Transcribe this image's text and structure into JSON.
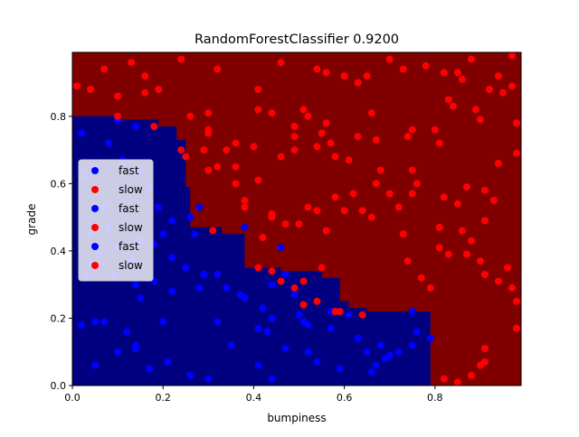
{
  "chart_data": {
    "type": "scatter",
    "title": "RandomForestClassifier 0.9200",
    "xlabel": "bumpiness",
    "ylabel": "grade",
    "xlim": [
      0.0,
      0.99
    ],
    "ylim": [
      0.0,
      0.99
    ],
    "xticks": [
      "0.0",
      "0.2",
      "0.4",
      "0.6",
      "0.8"
    ],
    "xtick_values": [
      0.0,
      0.2,
      0.4,
      0.6,
      0.8
    ],
    "yticks": [
      "0.0",
      "0.2",
      "0.4",
      "0.6",
      "0.8"
    ],
    "ytick_values": [
      0.0,
      0.2,
      0.4,
      0.6,
      0.8
    ],
    "grid": false,
    "legend_position": "upper-left",
    "legend": [
      {
        "label": "fast",
        "color": "#0000ff"
      },
      {
        "label": "slow",
        "color": "#ff0000"
      },
      {
        "label": "fast",
        "color": "#0000ff"
      },
      {
        "label": "slow",
        "color": "#ff0000"
      },
      {
        "label": "fast",
        "color": "#0000ff"
      },
      {
        "label": "slow",
        "color": "#ff0000"
      }
    ],
    "decision_regions": {
      "background_color": "#800000",
      "fast_region_color": "#000080",
      "fast_region_polygon": [
        [
          0.0,
          0.8
        ],
        [
          0.1,
          0.8
        ],
        [
          0.1,
          0.79
        ],
        [
          0.19,
          0.79
        ],
        [
          0.19,
          0.77
        ],
        [
          0.23,
          0.77
        ],
        [
          0.23,
          0.73
        ],
        [
          0.25,
          0.73
        ],
        [
          0.25,
          0.59
        ],
        [
          0.26,
          0.59
        ],
        [
          0.26,
          0.47
        ],
        [
          0.33,
          0.47
        ],
        [
          0.33,
          0.45
        ],
        [
          0.38,
          0.45
        ],
        [
          0.38,
          0.35
        ],
        [
          0.46,
          0.35
        ],
        [
          0.46,
          0.34
        ],
        [
          0.55,
          0.34
        ],
        [
          0.55,
          0.32
        ],
        [
          0.59,
          0.32
        ],
        [
          0.59,
          0.25
        ],
        [
          0.61,
          0.25
        ],
        [
          0.61,
          0.23
        ],
        [
          0.65,
          0.23
        ],
        [
          0.65,
          0.22
        ],
        [
          0.79,
          0.22
        ],
        [
          0.79,
          0.0
        ],
        [
          0.0,
          0.0
        ]
      ]
    },
    "series": [
      {
        "name": "fast",
        "color": "#0000ff",
        "points": [
          [
            0.02,
            0.75
          ],
          [
            0.03,
            0.62
          ],
          [
            0.05,
            0.65
          ],
          [
            0.07,
            0.53
          ],
          [
            0.08,
            0.72
          ],
          [
            0.1,
            0.79
          ],
          [
            0.11,
            0.67
          ],
          [
            0.14,
            0.77
          ],
          [
            0.15,
            0.64
          ],
          [
            0.17,
            0.59
          ],
          [
            0.19,
            0.53
          ],
          [
            0.08,
            0.47
          ],
          [
            0.04,
            0.45
          ],
          [
            0.1,
            0.41
          ],
          [
            0.15,
            0.43
          ],
          [
            0.2,
            0.45
          ],
          [
            0.22,
            0.49
          ],
          [
            0.26,
            0.5
          ],
          [
            0.28,
            0.53
          ],
          [
            0.27,
            0.45
          ],
          [
            0.22,
            0.38
          ],
          [
            0.18,
            0.42
          ],
          [
            0.13,
            0.37
          ],
          [
            0.09,
            0.33
          ],
          [
            0.03,
            0.32
          ],
          [
            0.04,
            0.36
          ],
          [
            0.14,
            0.3
          ],
          [
            0.18,
            0.31
          ],
          [
            0.15,
            0.26
          ],
          [
            0.22,
            0.28
          ],
          [
            0.25,
            0.35
          ],
          [
            0.28,
            0.29
          ],
          [
            0.29,
            0.33
          ],
          [
            0.32,
            0.33
          ],
          [
            0.34,
            0.29
          ],
          [
            0.37,
            0.27
          ],
          [
            0.38,
            0.47
          ],
          [
            0.38,
            0.26
          ],
          [
            0.42,
            0.23
          ],
          [
            0.44,
            0.3
          ],
          [
            0.46,
            0.41
          ],
          [
            0.47,
            0.33
          ],
          [
            0.49,
            0.27
          ],
          [
            0.44,
            0.2
          ],
          [
            0.41,
            0.17
          ],
          [
            0.43,
            0.16
          ],
          [
            0.47,
            0.11
          ],
          [
            0.5,
            0.21
          ],
          [
            0.51,
            0.19
          ],
          [
            0.52,
            0.18
          ],
          [
            0.57,
            0.22
          ],
          [
            0.61,
            0.21
          ],
          [
            0.57,
            0.17
          ],
          [
            0.63,
            0.14
          ],
          [
            0.65,
            0.1
          ],
          [
            0.68,
            0.12
          ],
          [
            0.69,
            0.08
          ],
          [
            0.7,
            0.09
          ],
          [
            0.72,
            0.1
          ],
          [
            0.75,
            0.12
          ],
          [
            0.76,
            0.16
          ],
          [
            0.79,
            0.14
          ],
          [
            0.75,
            0.22
          ],
          [
            0.67,
            0.06
          ],
          [
            0.66,
            0.04
          ],
          [
            0.59,
            0.05
          ],
          [
            0.54,
            0.07
          ],
          [
            0.52,
            0.1
          ],
          [
            0.44,
            0.02
          ],
          [
            0.41,
            0.06
          ],
          [
            0.35,
            0.12
          ],
          [
            0.32,
            0.19
          ],
          [
            0.3,
            0.02
          ],
          [
            0.26,
            0.03
          ],
          [
            0.21,
            0.07
          ],
          [
            0.2,
            0.19
          ],
          [
            0.17,
            0.05
          ],
          [
            0.14,
            0.12
          ],
          [
            0.12,
            0.16
          ],
          [
            0.1,
            0.1
          ],
          [
            0.07,
            0.19
          ],
          [
            0.05,
            0.19
          ],
          [
            0.02,
            0.18
          ],
          [
            0.05,
            0.06
          ],
          [
            0.14,
            0.11
          ],
          [
            0.06,
            0.39
          ]
        ]
      },
      {
        "name": "slow",
        "color": "#ff0000",
        "points": [
          [
            0.01,
            0.89
          ],
          [
            0.04,
            0.88
          ],
          [
            0.07,
            0.94
          ],
          [
            0.1,
            0.86
          ],
          [
            0.1,
            0.8
          ],
          [
            0.13,
            0.96
          ],
          [
            0.16,
            0.87
          ],
          [
            0.16,
            0.92
          ],
          [
            0.19,
            0.88
          ],
          [
            0.24,
            0.97
          ],
          [
            0.26,
            0.8
          ],
          [
            0.3,
            0.81
          ],
          [
            0.32,
            0.94
          ],
          [
            0.3,
            0.76
          ],
          [
            0.3,
            0.75
          ],
          [
            0.24,
            0.7
          ],
          [
            0.25,
            0.68
          ],
          [
            0.29,
            0.7
          ],
          [
            0.3,
            0.64
          ],
          [
            0.32,
            0.65
          ],
          [
            0.34,
            0.7
          ],
          [
            0.36,
            0.65
          ],
          [
            0.36,
            0.72
          ],
          [
            0.38,
            0.55
          ],
          [
            0.38,
            0.53
          ],
          [
            0.36,
            0.6
          ],
          [
            0.41,
            0.61
          ],
          [
            0.4,
            0.71
          ],
          [
            0.41,
            0.88
          ],
          [
            0.41,
            0.82
          ],
          [
            0.44,
            0.81
          ],
          [
            0.46,
            0.68
          ],
          [
            0.46,
            0.96
          ],
          [
            0.49,
            0.74
          ],
          [
            0.49,
            0.7
          ],
          [
            0.51,
            0.82
          ],
          [
            0.52,
            0.8
          ],
          [
            0.49,
            0.77
          ],
          [
            0.54,
            0.94
          ],
          [
            0.56,
            0.93
          ],
          [
            0.55,
            0.75
          ],
          [
            0.54,
            0.71
          ],
          [
            0.56,
            0.78
          ],
          [
            0.57,
            0.72
          ],
          [
            0.58,
            0.68
          ],
          [
            0.6,
            0.92
          ],
          [
            0.61,
            0.67
          ],
          [
            0.63,
            0.74
          ],
          [
            0.63,
            0.9
          ],
          [
            0.65,
            0.92
          ],
          [
            0.66,
            0.81
          ],
          [
            0.67,
            0.73
          ],
          [
            0.7,
            0.97
          ],
          [
            0.73,
            0.94
          ],
          [
            0.75,
            0.76
          ],
          [
            0.74,
            0.74
          ],
          [
            0.75,
            0.64
          ],
          [
            0.76,
            0.6
          ],
          [
            0.75,
            0.57
          ],
          [
            0.78,
            0.95
          ],
          [
            0.8,
            0.76
          ],
          [
            0.81,
            0.72
          ],
          [
            0.82,
            0.93
          ],
          [
            0.83,
            0.85
          ],
          [
            0.84,
            0.83
          ],
          [
            0.85,
            0.93
          ],
          [
            0.86,
            0.91
          ],
          [
            0.88,
            0.97
          ],
          [
            0.89,
            0.82
          ],
          [
            0.9,
            0.79
          ],
          [
            0.92,
            0.88
          ],
          [
            0.94,
            0.92
          ],
          [
            0.95,
            0.87
          ],
          [
            0.97,
            0.89
          ],
          [
            0.98,
            0.78
          ],
          [
            0.97,
            0.98
          ],
          [
            0.98,
            0.69
          ],
          [
            0.94,
            0.66
          ],
          [
            0.93,
            0.55
          ],
          [
            0.91,
            0.58
          ],
          [
            0.91,
            0.49
          ],
          [
            0.88,
            0.43
          ],
          [
            0.87,
            0.59
          ],
          [
            0.85,
            0.54
          ],
          [
            0.86,
            0.46
          ],
          [
            0.82,
            0.56
          ],
          [
            0.81,
            0.47
          ],
          [
            0.81,
            0.41
          ],
          [
            0.83,
            0.39
          ],
          [
            0.87,
            0.39
          ],
          [
            0.9,
            0.37
          ],
          [
            0.91,
            0.33
          ],
          [
            0.94,
            0.31
          ],
          [
            0.96,
            0.35
          ],
          [
            0.97,
            0.29
          ],
          [
            0.98,
            0.25
          ],
          [
            0.98,
            0.17
          ],
          [
            0.91,
            0.11
          ],
          [
            0.91,
            0.07
          ],
          [
            0.9,
            0.06
          ],
          [
            0.88,
            0.03
          ],
          [
            0.85,
            0.01
          ],
          [
            0.82,
            0.02
          ],
          [
            0.79,
            0.29
          ],
          [
            0.77,
            0.32
          ],
          [
            0.74,
            0.37
          ],
          [
            0.73,
            0.45
          ],
          [
            0.72,
            0.53
          ],
          [
            0.7,
            0.57
          ],
          [
            0.68,
            0.64
          ],
          [
            0.67,
            0.6
          ],
          [
            0.66,
            0.5
          ],
          [
            0.64,
            0.52
          ],
          [
            0.62,
            0.57
          ],
          [
            0.6,
            0.52
          ],
          [
            0.58,
            0.56
          ],
          [
            0.56,
            0.46
          ],
          [
            0.54,
            0.52
          ],
          [
            0.52,
            0.53
          ],
          [
            0.5,
            0.48
          ],
          [
            0.47,
            0.48
          ],
          [
            0.44,
            0.51
          ],
          [
            0.44,
            0.5
          ],
          [
            0.42,
            0.44
          ],
          [
            0.41,
            0.35
          ],
          [
            0.44,
            0.34
          ],
          [
            0.46,
            0.31
          ],
          [
            0.49,
            0.29
          ],
          [
            0.51,
            0.31
          ],
          [
            0.55,
            0.35
          ],
          [
            0.54,
            0.25
          ],
          [
            0.51,
            0.24
          ],
          [
            0.58,
            0.22
          ],
          [
            0.59,
            0.22
          ],
          [
            0.64,
            0.21
          ],
          [
            0.31,
            0.46
          ],
          [
            0.18,
            0.77
          ]
        ]
      }
    ]
  }
}
